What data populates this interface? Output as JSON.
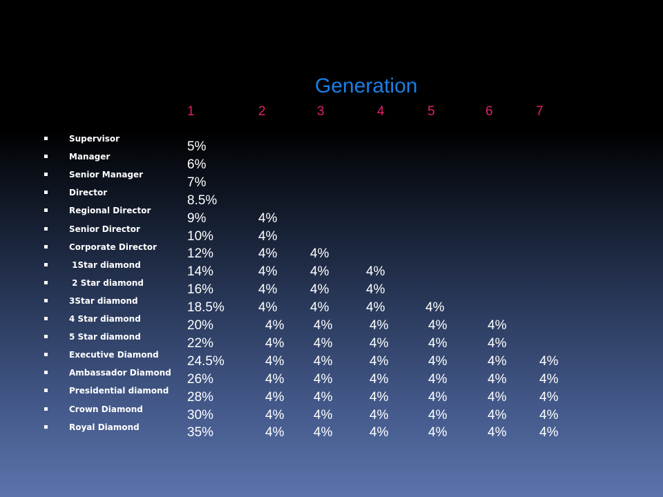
{
  "slide": {
    "title": "Generation",
    "generations": [
      "1",
      "2",
      "3",
      "4",
      "5",
      "6",
      "7"
    ],
    "rows": [
      {
        "rank": "Supervisor",
        "values": [
          "5%"
        ]
      },
      {
        "rank": "Manager",
        "values": [
          "6%"
        ]
      },
      {
        "rank": "Senior Manager",
        "values": [
          "7%"
        ]
      },
      {
        "rank": "Director",
        "values": [
          "8.5%"
        ]
      },
      {
        "rank": "Regional Director",
        "values": [
          "9%",
          "4%"
        ]
      },
      {
        "rank": "Senior Director",
        "values": [
          "10%",
          "4%"
        ]
      },
      {
        "rank": "Corporate Director",
        "values": [
          "12%",
          "4%",
          "4%"
        ]
      },
      {
        "rank": " 1Star diamond",
        "values": [
          "14%",
          "4%",
          "4%",
          "4%"
        ]
      },
      {
        "rank": " 2 Star diamond",
        "values": [
          "16%",
          "4%",
          "4%",
          "4%"
        ]
      },
      {
        "rank": "3Star diamond",
        "values": [
          "18.5%",
          "4%",
          "4%",
          "4%",
          "4%"
        ]
      },
      {
        "rank": "4 Star diamond",
        "values": [
          "20%",
          "4%",
          "4%",
          "4%",
          "4%",
          "4%"
        ]
      },
      {
        "rank": "5 Star diamond",
        "values": [
          "22%",
          "4%",
          "4%",
          "4%",
          "4%",
          "4%"
        ]
      },
      {
        "rank": "Executive Diamond",
        "values": [
          "24.5%",
          "4%",
          "4%",
          "4%",
          "4%",
          "4%",
          "4%"
        ]
      },
      {
        "rank": "Ambassador Diamond",
        "values": [
          "26%",
          "4%",
          "4%",
          "4%",
          "4%",
          "4%",
          "4%"
        ]
      },
      {
        "rank": "Presidential diamond",
        "values": [
          "28%",
          "4%",
          "4%",
          "4%",
          "4%",
          "4%",
          "4%"
        ]
      },
      {
        "rank": "Crown Diamond",
        "values": [
          "30%",
          "4%",
          "4%",
          "4%",
          "4%",
          "4%",
          "4%"
        ]
      },
      {
        "rank": "Royal Diamond",
        "values": [
          "35%",
          "4%",
          "4%",
          "4%",
          "4%",
          "4%",
          "4%"
        ]
      }
    ]
  },
  "colors": {
    "title": "#1a7fe6",
    "generation_numbers": "#e0206e",
    "text": "#ffffff"
  },
  "icons": {
    "row_bullet": "square-bullet-icon"
  }
}
